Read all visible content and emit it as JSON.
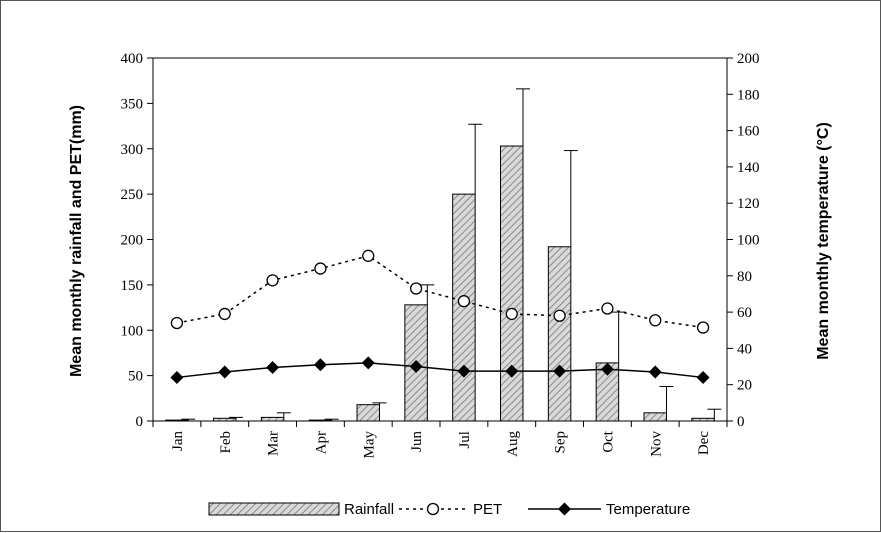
{
  "chart_data": {
    "type": "bar",
    "categories": [
      "Jan",
      "Feb",
      "Mar",
      "Apr",
      "May",
      "Jun",
      "Jul",
      "Aug",
      "Sep",
      "Oct",
      "Nov",
      "Dec"
    ],
    "series": [
      {
        "name": "Rainfall",
        "kind": "bar",
        "axis": "left",
        "values": [
          1,
          3,
          4,
          1,
          18,
          128,
          250,
          303,
          192,
          64,
          9,
          3
        ],
        "error_upper": [
          2,
          4,
          9,
          2,
          20,
          150,
          327,
          366,
          298,
          120,
          38,
          13
        ]
      },
      {
        "name": "PET",
        "kind": "line",
        "axis": "left",
        "marker": "open-circle",
        "line": "dashed",
        "values": [
          108,
          118,
          155,
          168,
          182,
          146,
          132,
          118,
          116,
          124,
          111,
          103
        ]
      },
      {
        "name": "Temperature",
        "kind": "line",
        "axis": "right",
        "marker": "filled-diamond",
        "line": "solid",
        "values": [
          24,
          27,
          29.5,
          31,
          32,
          30,
          27.5,
          27.5,
          27.5,
          28.5,
          27,
          24
        ]
      }
    ],
    "ylabel": "Mean monthly rainfall  and PET(mm)",
    "y2label": "Mean monthly temperature  (°C)",
    "ylim": [
      0,
      400
    ],
    "y2lim": [
      0,
      200
    ],
    "yticks": [
      "0",
      "50",
      "100",
      "150",
      "200",
      "250",
      "300",
      "350",
      "400"
    ],
    "y2ticks": [
      "0",
      "20",
      "40",
      "60",
      "80",
      "100",
      "120",
      "140",
      "160",
      "180",
      "200"
    ],
    "legend_position": "bottom",
    "grid": false,
    "colors": {
      "bar_fill": "#d9d9d9",
      "bar_hatch": "#666666",
      "line": "#000000"
    }
  }
}
